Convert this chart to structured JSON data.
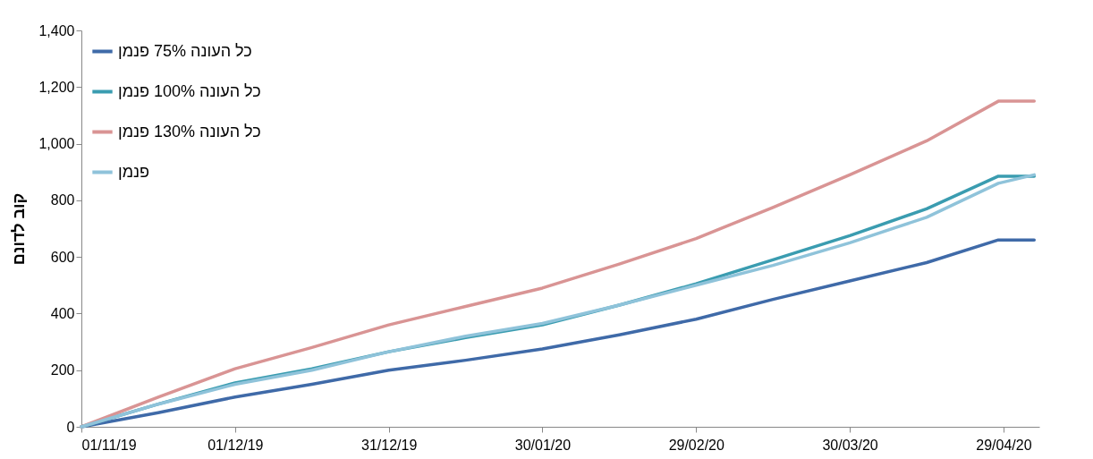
{
  "chart_data": {
    "type": "line",
    "ylabel": "קוב לדונם",
    "x": [
      "2019-11-01",
      "2019-11-16",
      "2019-12-01",
      "2019-12-16",
      "2019-12-31",
      "2020-01-15",
      "2020-01-30",
      "2020-02-14",
      "2020-02-29",
      "2020-03-15",
      "2020-03-30",
      "2020-04-14",
      "2020-04-28",
      "2020-05-05"
    ],
    "series": [
      {
        "name": "כל העונה 75% פנמן",
        "color": "#3f6aa8",
        "values": [
          0,
          50,
          105,
          150,
          200,
          235,
          275,
          325,
          380,
          450,
          515,
          580,
          660,
          660
        ]
      },
      {
        "name": "כל העונה 100% פנמן",
        "color": "#3a9cb0",
        "values": [
          0,
          80,
          155,
          205,
          265,
          315,
          360,
          430,
          505,
          590,
          675,
          770,
          885,
          885
        ]
      },
      {
        "name": "כל העונה 130% פנמן",
        "color": "#d99494",
        "values": [
          0,
          105,
          205,
          280,
          360,
          425,
          490,
          575,
          665,
          775,
          890,
          1010,
          1150,
          1150
        ]
      },
      {
        "name": "פנמן",
        "color": "#8fc3da",
        "values": [
          0,
          80,
          150,
          200,
          265,
          320,
          365,
          430,
          500,
          570,
          650,
          740,
          860,
          890
        ]
      }
    ],
    "xlim": [
      "2019-11-01",
      "2020-05-06"
    ],
    "xticks": [
      {
        "value": "2019-11-01",
        "label": "01/11/19"
      },
      {
        "value": "2019-12-01",
        "label": "01/12/19"
      },
      {
        "value": "2019-12-31",
        "label": "31/12/19"
      },
      {
        "value": "2020-01-30",
        "label": "30/01/20"
      },
      {
        "value": "2020-02-29",
        "label": "29/02/20"
      },
      {
        "value": "2020-03-30",
        "label": "30/03/20"
      },
      {
        "value": "2020-04-29",
        "label": "29/04/20"
      }
    ],
    "ylim": [
      0,
      1400
    ],
    "yticks": [
      0,
      200,
      400,
      600,
      800,
      {
        "value": 1000,
        "label": "1,000"
      },
      {
        "value": 1200,
        "label": "1,200"
      },
      {
        "value": 1400,
        "label": "1,400"
      }
    ],
    "legend": "top left",
    "grid": false,
    "line_style": "solid",
    "marker": "none"
  }
}
